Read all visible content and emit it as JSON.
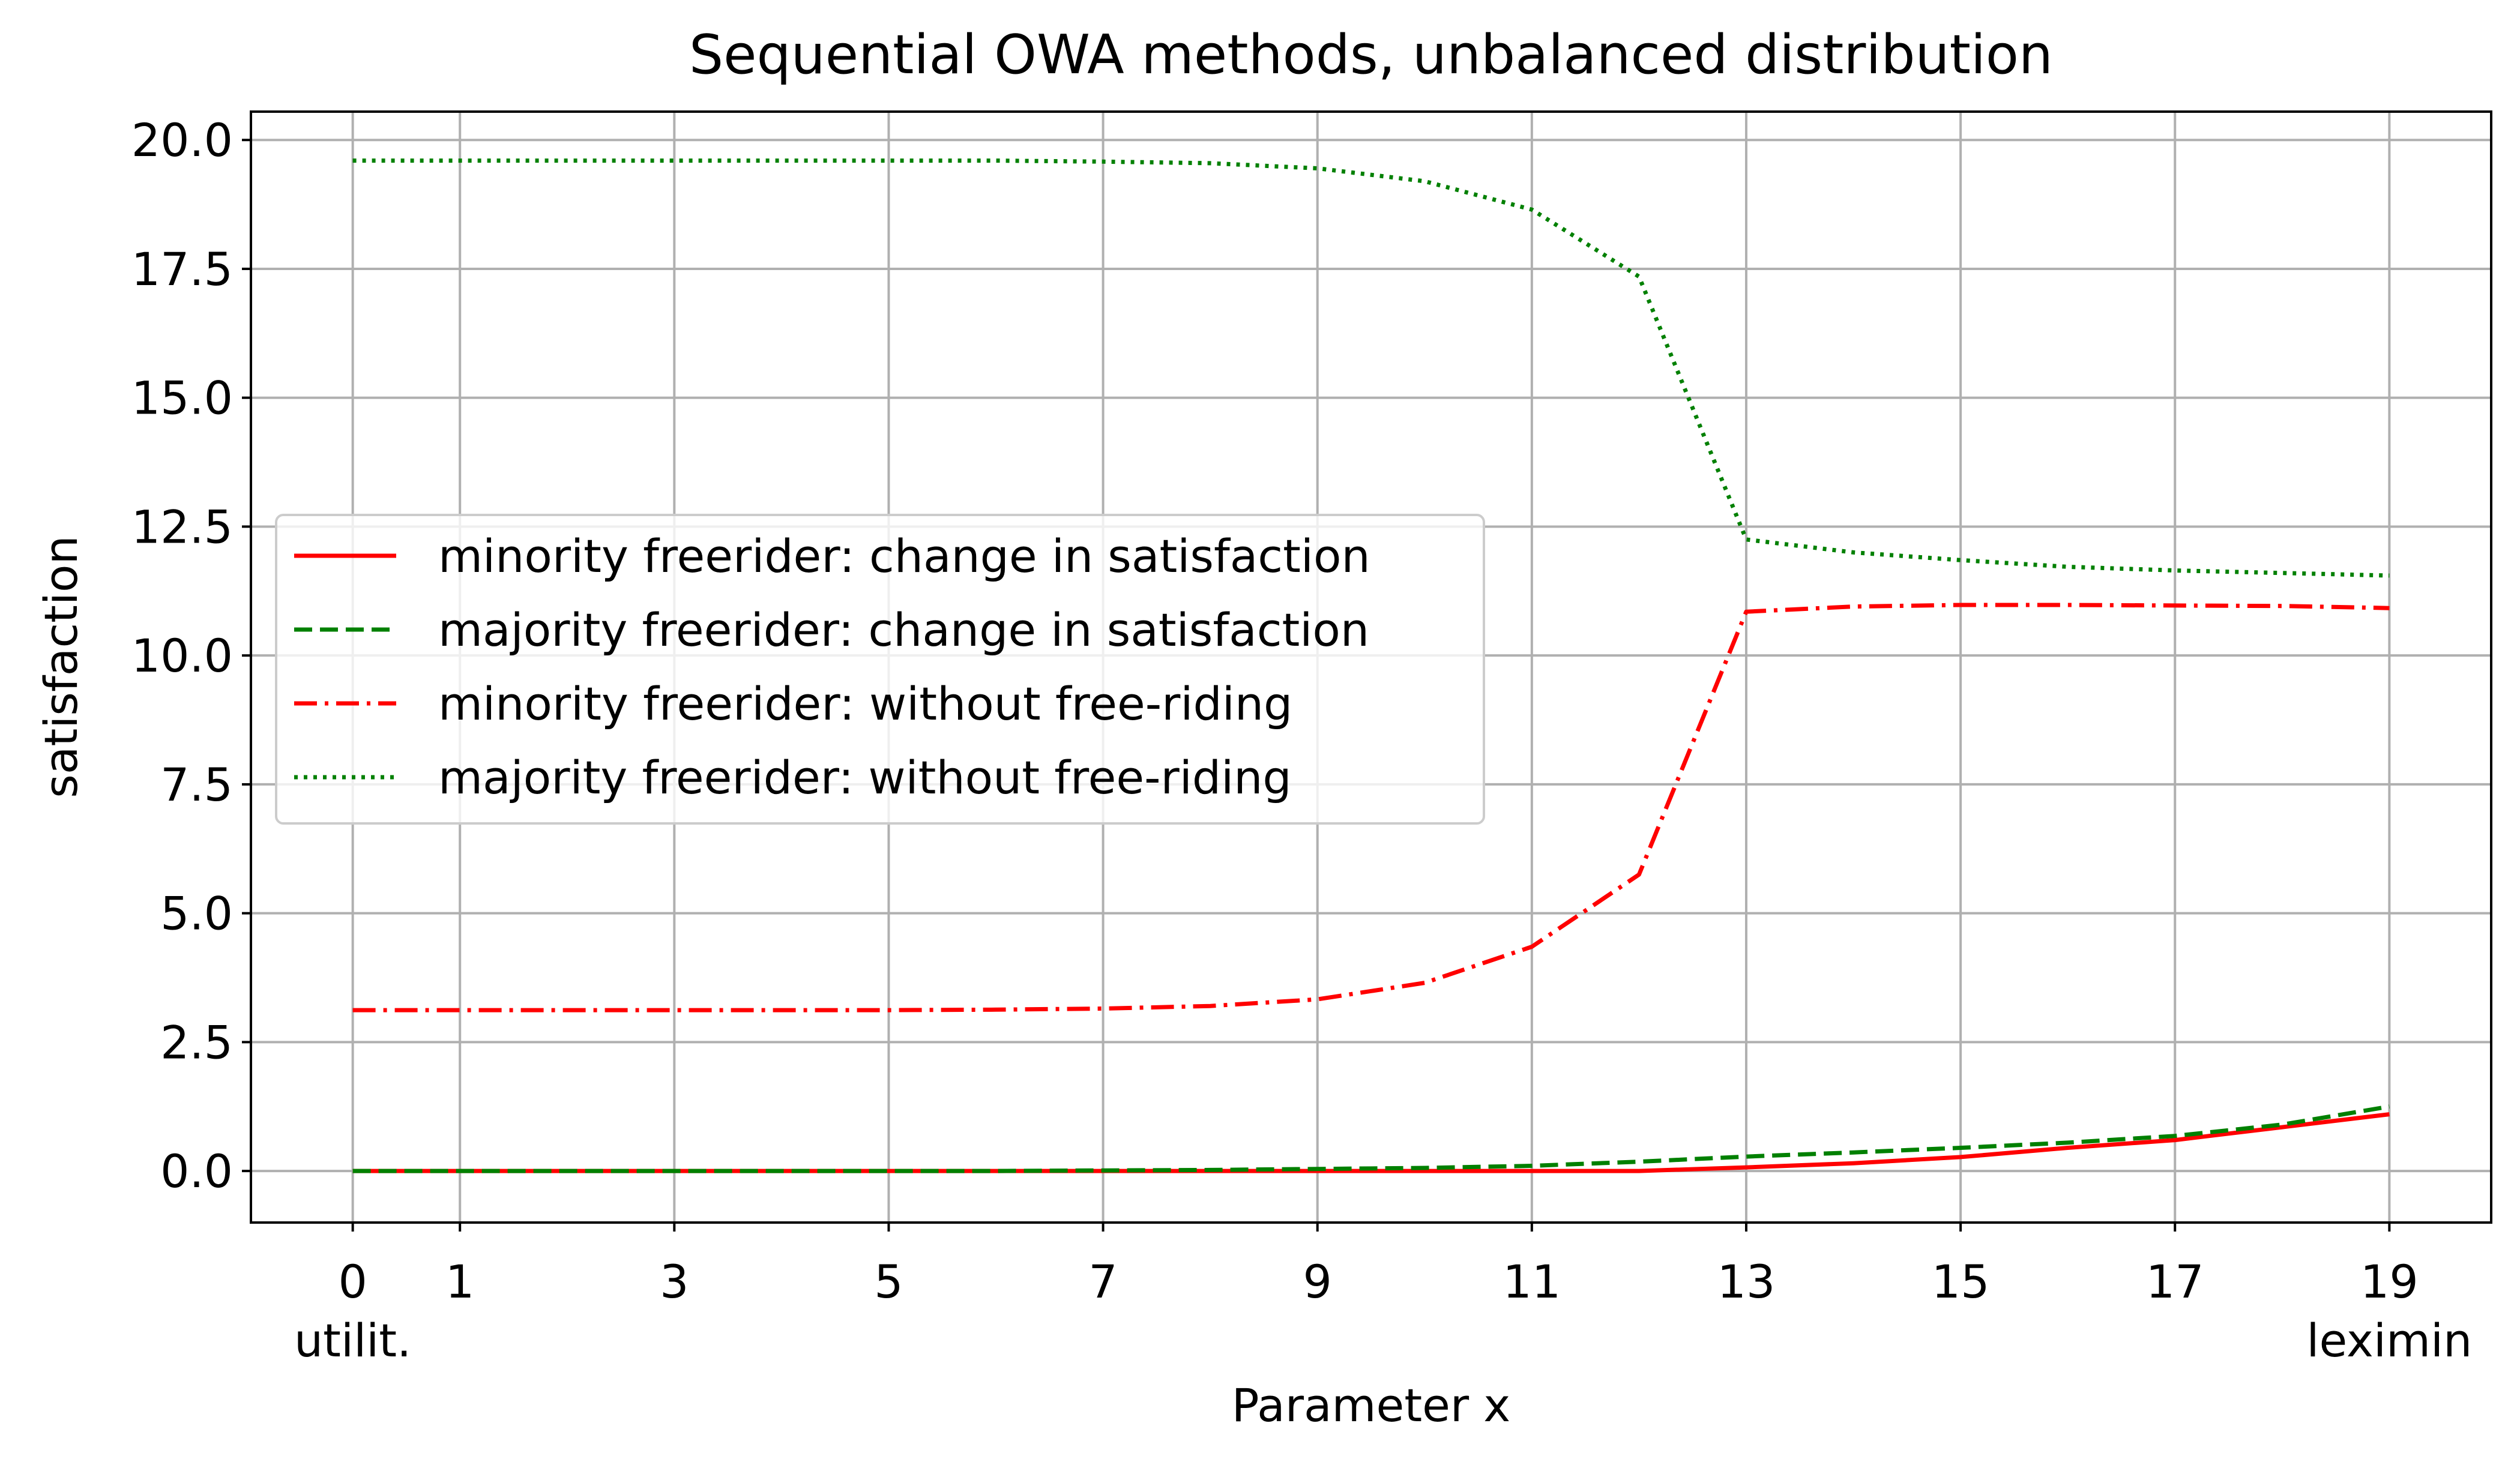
{
  "chart_data": {
    "type": "line",
    "title": "Sequential OWA methods, unbalanced distribution",
    "xlabel": "Parameter x",
    "ylabel": "satisfaction",
    "xlim": [
      -0.95,
      19.95
    ],
    "ylim": [
      -1.0,
      20.55
    ],
    "grid": true,
    "legend_position": "center-left",
    "x_ticks": [
      {
        "value": 0,
        "label": "0",
        "sublabel": "utilit."
      },
      {
        "value": 1,
        "label": "1"
      },
      {
        "value": 3,
        "label": "3"
      },
      {
        "value": 5,
        "label": "5"
      },
      {
        "value": 7,
        "label": "7"
      },
      {
        "value": 9,
        "label": "9"
      },
      {
        "value": 11,
        "label": "11"
      },
      {
        "value": 13,
        "label": "13"
      },
      {
        "value": 15,
        "label": "15"
      },
      {
        "value": 17,
        "label": "17"
      },
      {
        "value": 19,
        "label": "19",
        "sublabel": "leximin"
      }
    ],
    "y_ticks": [
      {
        "value": 0,
        "label": "0.0"
      },
      {
        "value": 2.5,
        "label": "2.5"
      },
      {
        "value": 5,
        "label": "5.0"
      },
      {
        "value": 7.5,
        "label": "7.5"
      },
      {
        "value": 10,
        "label": "10.0"
      },
      {
        "value": 12.5,
        "label": "12.5"
      },
      {
        "value": 15,
        "label": "15.0"
      },
      {
        "value": 17.5,
        "label": "17.5"
      },
      {
        "value": 20,
        "label": "20.0"
      }
    ],
    "x": [
      0,
      1,
      2,
      3,
      4,
      5,
      6,
      7,
      8,
      9,
      10,
      11,
      12,
      13,
      14,
      15,
      16,
      17,
      18,
      19
    ],
    "series": [
      {
        "name": "minority freerider: change in satisfaction",
        "color": "#ff0000",
        "style": "solid",
        "values": [
          0,
          0,
          0,
          0,
          0,
          0,
          0,
          0,
          0,
          0,
          0,
          0,
          0,
          0.07,
          0.15,
          0.27,
          0.45,
          0.6,
          0.85,
          1.1
        ]
      },
      {
        "name": "majority freerider: change in satisfaction",
        "color": "#008000",
        "style": "dashed",
        "values": [
          0,
          0,
          0,
          0,
          0,
          0,
          0,
          0.01,
          0.02,
          0.04,
          0.06,
          0.1,
          0.18,
          0.28,
          0.36,
          0.45,
          0.55,
          0.68,
          0.9,
          1.25
        ]
      },
      {
        "name": "minority freerider: without free-riding",
        "color": "#ff0000",
        "style": "dashdot",
        "values": [
          3.12,
          3.12,
          3.12,
          3.12,
          3.12,
          3.12,
          3.13,
          3.15,
          3.2,
          3.33,
          3.65,
          4.35,
          5.75,
          10.85,
          10.95,
          10.98,
          10.98,
          10.97,
          10.96,
          10.92
        ]
      },
      {
        "name": "majority freerider: without free-riding",
        "color": "#008000",
        "style": "dotted",
        "values": [
          19.6,
          19.6,
          19.6,
          19.6,
          19.6,
          19.6,
          19.6,
          19.58,
          19.55,
          19.45,
          19.2,
          18.65,
          17.35,
          12.25,
          12.0,
          11.85,
          11.72,
          11.65,
          11.6,
          11.55
        ]
      }
    ]
  }
}
